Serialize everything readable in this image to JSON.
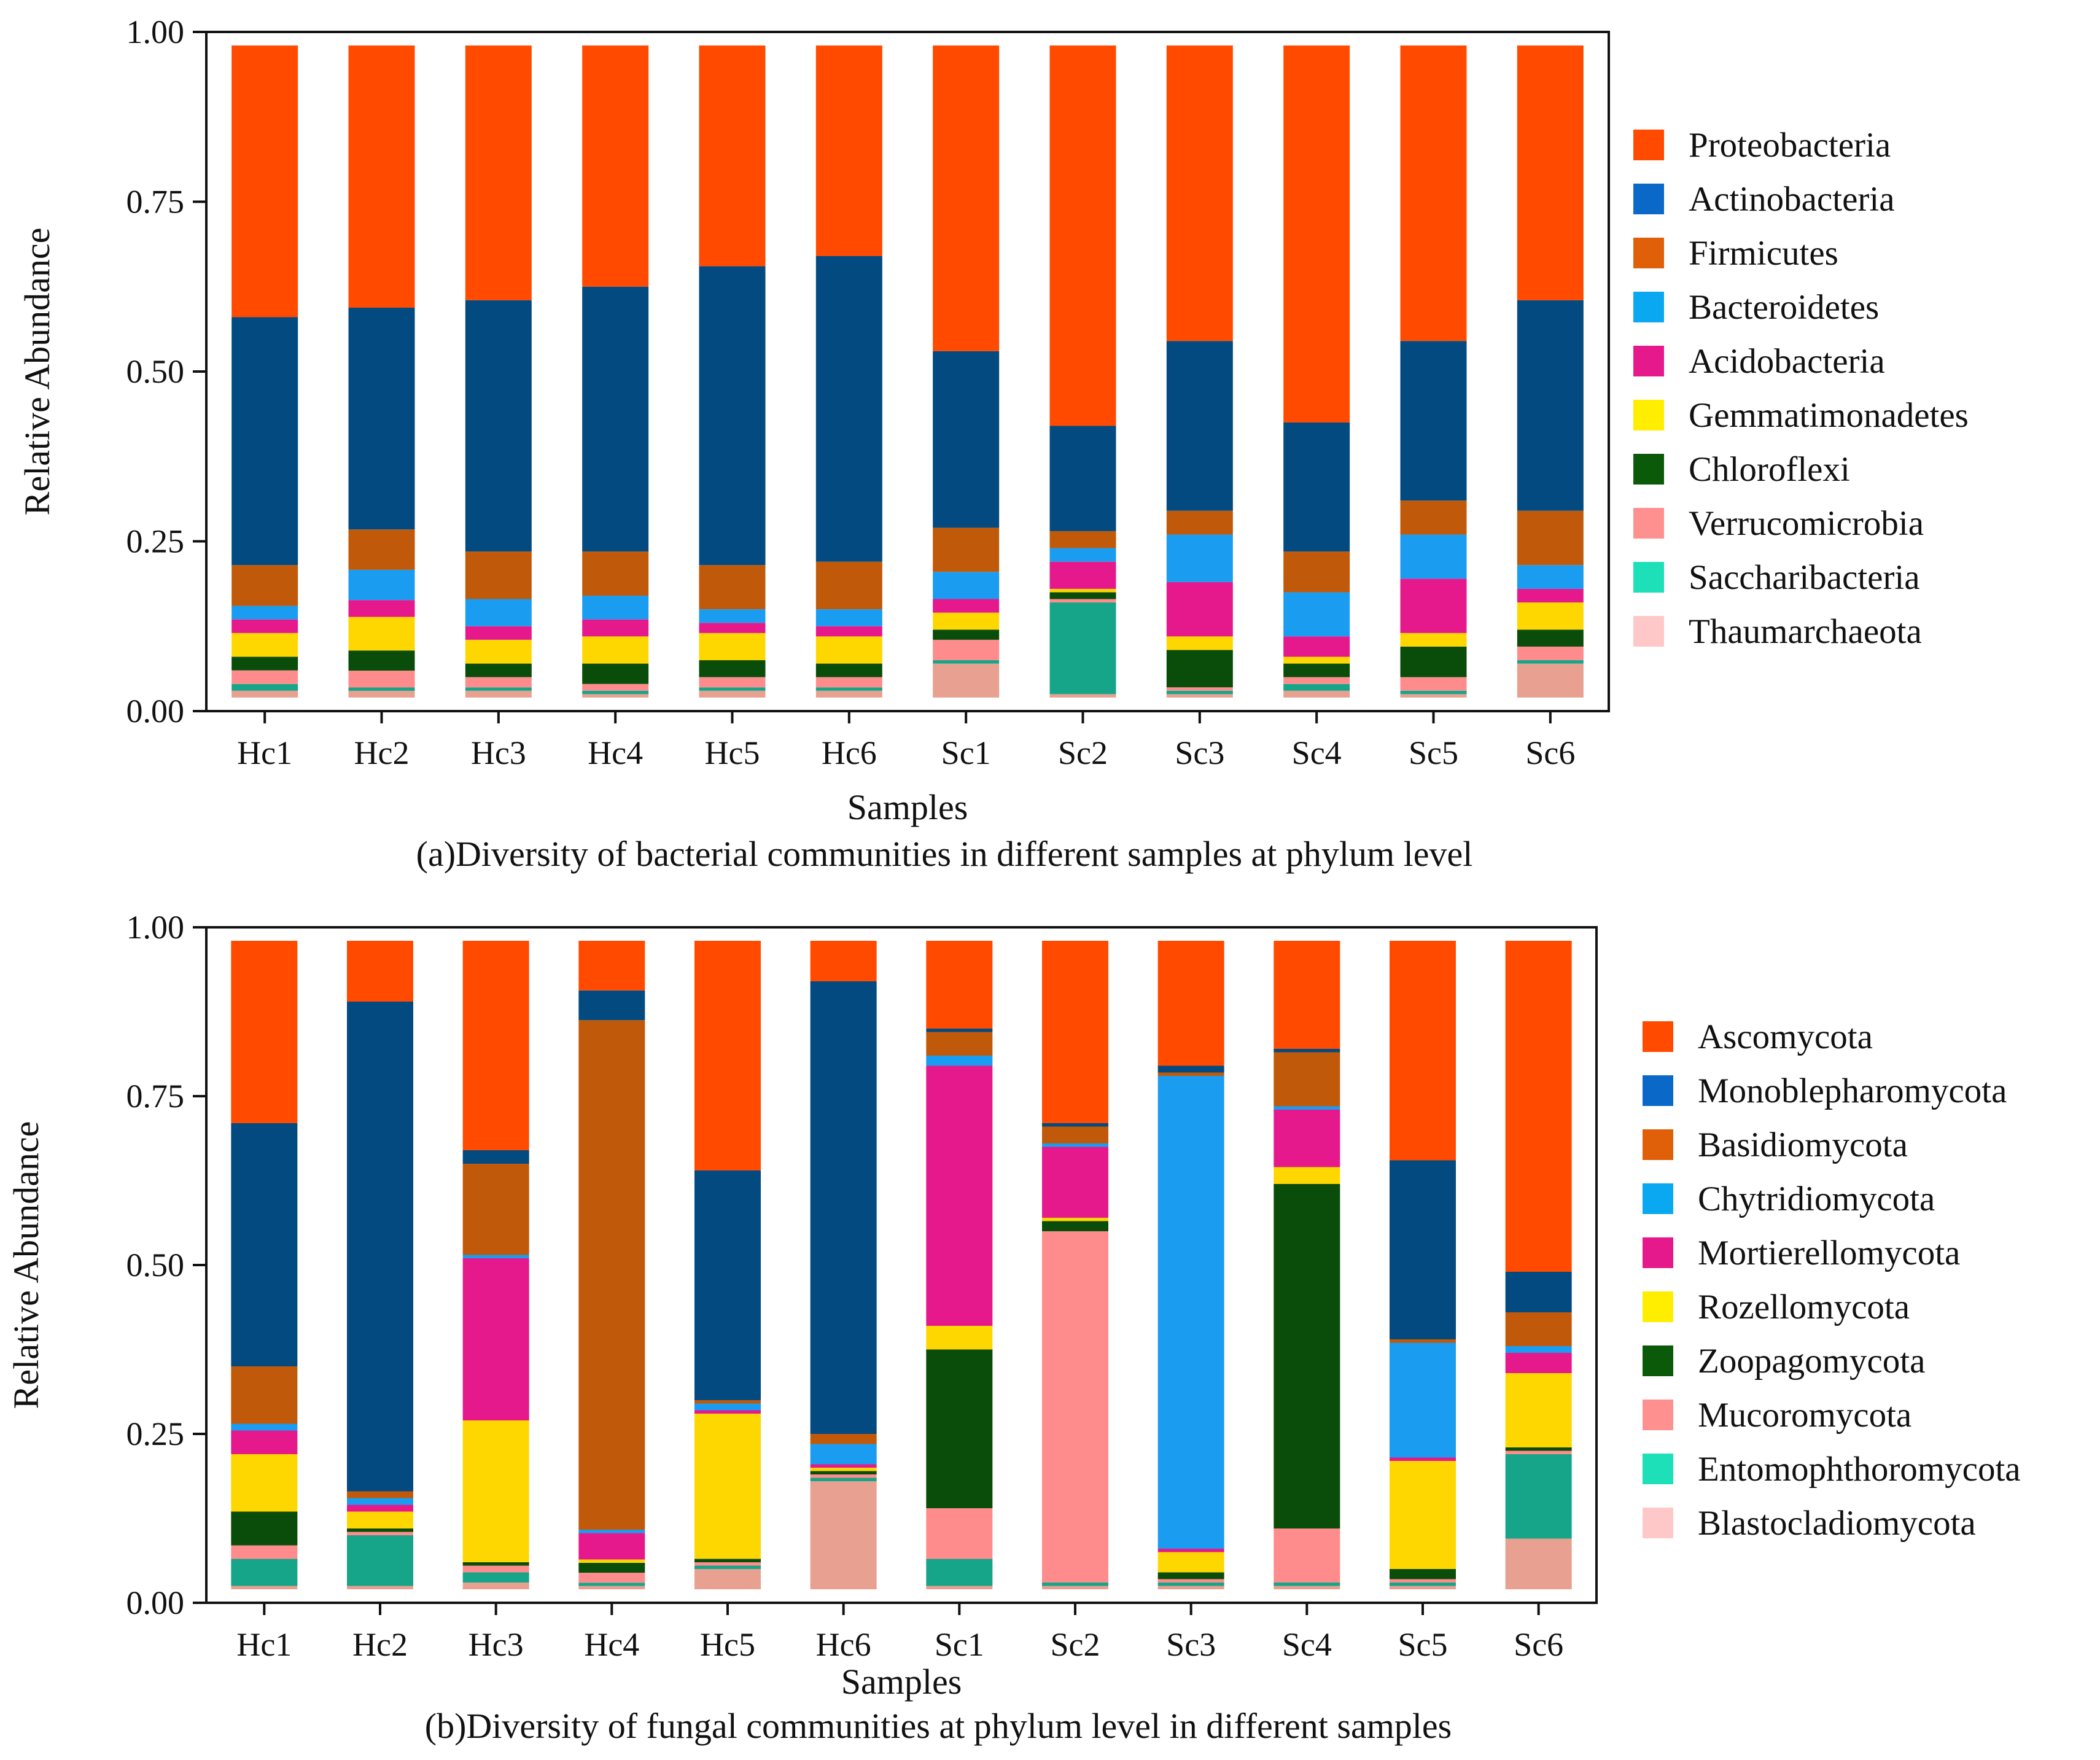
{
  "chart_data": [
    {
      "type": "stacked-bar",
      "title": "",
      "caption": "(a)Diversity of bacterial communities in different samples at phylum level",
      "xlabel": "Samples",
      "ylabel": "Relative Abundance",
      "ylim": [
        0,
        1
      ],
      "yticks": [
        "0.00",
        "0.25",
        "0.50",
        "0.75",
        "1.00"
      ],
      "bar_top": 0.98,
      "bar_bottom": 0.02,
      "categories": [
        "Hc1",
        "Hc2",
        "Hc3",
        "Hc4",
        "Hc5",
        "Hc6",
        "Sc1",
        "Sc2",
        "Sc3",
        "Sc4",
        "Sc5",
        "Sc6"
      ],
      "series": [
        {
          "name": "Thaumarchaeota",
          "color": "#e8a090",
          "values": [
            0.01,
            0.01,
            0.01,
            0.005,
            0.01,
            0.01,
            0.05,
            0.005,
            0.005,
            0.01,
            0.005,
            0.05
          ]
        },
        {
          "name": "Saccharibacteria",
          "color": "#17a589",
          "values": [
            0.01,
            0.005,
            0.005,
            0.005,
            0.005,
            0.005,
            0.005,
            0.135,
            0.005,
            0.01,
            0.005,
            0.005
          ]
        },
        {
          "name": "Verrucomicrobia",
          "color": "#ff8c8c",
          "values": [
            0.02,
            0.025,
            0.015,
            0.01,
            0.015,
            0.015,
            0.03,
            0.005,
            0.005,
            0.01,
            0.02,
            0.02
          ]
        },
        {
          "name": "Chloroflexi",
          "color": "#0a4d0a",
          "values": [
            0.02,
            0.03,
            0.02,
            0.03,
            0.025,
            0.02,
            0.015,
            0.01,
            0.055,
            0.02,
            0.045,
            0.025
          ]
        },
        {
          "name": "Gemmatimonadetes",
          "color": "#ffd700",
          "values": [
            0.035,
            0.05,
            0.035,
            0.04,
            0.04,
            0.04,
            0.025,
            0.005,
            0.02,
            0.01,
            0.02,
            0.04
          ]
        },
        {
          "name": "Acidobacteria",
          "color": "#e6198c",
          "values": [
            0.02,
            0.025,
            0.02,
            0.025,
            0.015,
            0.015,
            0.02,
            0.04,
            0.08,
            0.03,
            0.08,
            0.02
          ]
        },
        {
          "name": "Bacteroidetes",
          "color": "#1a9cf0",
          "values": [
            0.02,
            0.045,
            0.04,
            0.035,
            0.02,
            0.025,
            0.04,
            0.02,
            0.07,
            0.065,
            0.065,
            0.035
          ]
        },
        {
          "name": "Firmicutes",
          "color": "#c05a0a",
          "values": [
            0.06,
            0.06,
            0.07,
            0.065,
            0.065,
            0.07,
            0.065,
            0.025,
            0.035,
            0.06,
            0.05,
            0.08
          ]
        },
        {
          "name": "Actinobacteria",
          "color": "#034a80",
          "values": [
            0.365,
            0.33,
            0.37,
            0.39,
            0.44,
            0.45,
            0.26,
            0.155,
            0.25,
            0.19,
            0.235,
            0.31
          ]
        },
        {
          "name": "Proteobacteria",
          "color": "#ff4a00",
          "values": [
            0.4,
            0.39,
            0.375,
            0.355,
            0.325,
            0.31,
            0.45,
            0.56,
            0.435,
            0.555,
            0.435,
            0.375
          ]
        }
      ],
      "legend": [
        {
          "name": "Proteobacteria",
          "color": "#ff4a00"
        },
        {
          "name": "Actinobacteria",
          "color": "#0a68c9"
        },
        {
          "name": "Firmicutes",
          "color": "#e0600a"
        },
        {
          "name": "Bacteroidetes",
          "color": "#0aa8f0"
        },
        {
          "name": "Acidobacteria",
          "color": "#e6198c"
        },
        {
          "name": "Gemmatimonadetes",
          "color": "#ffee00"
        },
        {
          "name": "Chloroflexi",
          "color": "#0a5a0a"
        },
        {
          "name": "Verrucomicrobia",
          "color": "#ff9090"
        },
        {
          "name": "Saccharibacteria",
          "color": "#1ee0b8"
        },
        {
          "name": "Thaumarchaeota",
          "color": "#ffc8c8"
        }
      ]
    },
    {
      "type": "stacked-bar",
      "title": "",
      "caption": "(b)Diversity of fungal communities at phylum level in different samples",
      "xlabel": "Samples",
      "ylabel": "Relative Abundance",
      "ylim": [
        0,
        1
      ],
      "yticks": [
        "0.00",
        "0.25",
        "0.50",
        "0.75",
        "1.00"
      ],
      "bar_top": 0.98,
      "bar_bottom": 0.02,
      "categories": [
        "Hc1",
        "Hc2",
        "Hc3",
        "Hc4",
        "Hc5",
        "Hc6",
        "Sc1",
        "Sc2",
        "Sc3",
        "Sc4",
        "Sc5",
        "Sc6"
      ],
      "series": [
        {
          "name": "Blastocladiomycota",
          "color": "#e8a090",
          "values": [
            0.005,
            0.005,
            0.01,
            0.005,
            0.03,
            0.16,
            0.005,
            0.005,
            0.005,
            0.005,
            0.005,
            0.075
          ]
        },
        {
          "name": "Entomophthoromycota",
          "color": "#17a589",
          "values": [
            0.04,
            0.075,
            0.015,
            0.005,
            0.005,
            0.005,
            0.04,
            0.005,
            0.005,
            0.005,
            0.005,
            0.125
          ]
        },
        {
          "name": "Mucoromycota",
          "color": "#ff8c8c",
          "values": [
            0.02,
            0.005,
            0.01,
            0.015,
            0.005,
            0.005,
            0.075,
            0.52,
            0.005,
            0.08,
            0.005,
            0.005
          ]
        },
        {
          "name": "Zoopagomycota",
          "color": "#0a4d0a",
          "values": [
            0.05,
            0.005,
            0.005,
            0.015,
            0.005,
            0.005,
            0.235,
            0.015,
            0.01,
            0.51,
            0.015,
            0.005
          ]
        },
        {
          "name": "Rozellomycota",
          "color": "#ffd700",
          "values": [
            0.085,
            0.025,
            0.21,
            0.005,
            0.215,
            0.005,
            0.035,
            0.005,
            0.03,
            0.025,
            0.16,
            0.11
          ]
        },
        {
          "name": "Mortierellomycota",
          "color": "#e6198c",
          "values": [
            0.035,
            0.01,
            0.24,
            0.04,
            0.005,
            0.005,
            0.385,
            0.105,
            0.005,
            0.085,
            0.005,
            0.03
          ]
        },
        {
          "name": "Chytridiomycota",
          "color": "#1a9cf0",
          "values": [
            0.01,
            0.01,
            0.005,
            0.005,
            0.01,
            0.03,
            0.015,
            0.005,
            0.7,
            0.005,
            0.17,
            0.01
          ]
        },
        {
          "name": "Basidiomycota",
          "color": "#c05a0a",
          "values": [
            0.085,
            0.01,
            0.135,
            0.77,
            0.005,
            0.015,
            0.035,
            0.025,
            0.005,
            0.08,
            0.005,
            0.05
          ]
        },
        {
          "name": "Monoblepharomycota",
          "color": "#034a80",
          "values": [
            0.36,
            0.725,
            0.02,
            0.045,
            0.34,
            0.67,
            0.005,
            0.005,
            0.01,
            0.005,
            0.265,
            0.06
          ]
        },
        {
          "name": "Ascomycota",
          "color": "#ff4a00",
          "values": [
            0.27,
            0.09,
            0.31,
            0.075,
            0.34,
            0.06,
            0.13,
            0.27,
            0.185,
            0.16,
            0.325,
            0.49
          ]
        }
      ],
      "legend": [
        {
          "name": "Ascomycota",
          "color": "#ff4a00"
        },
        {
          "name": "Monoblepharomycota",
          "color": "#0a68c9"
        },
        {
          "name": "Basidiomycota",
          "color": "#e0600a"
        },
        {
          "name": "Chytridiomycota",
          "color": "#0aa8f0"
        },
        {
          "name": "Mortierellomycota",
          "color": "#e6198c"
        },
        {
          "name": "Rozellomycota",
          "color": "#ffee00"
        },
        {
          "name": "Zoopagomycota",
          "color": "#0a5a0a"
        },
        {
          "name": "Mucoromycota",
          "color": "#ff9090"
        },
        {
          "name": "Entomophthoromycota",
          "color": "#1ee0b8"
        },
        {
          "name": "Blastocladiomycota",
          "color": "#ffc8c8"
        }
      ]
    }
  ]
}
